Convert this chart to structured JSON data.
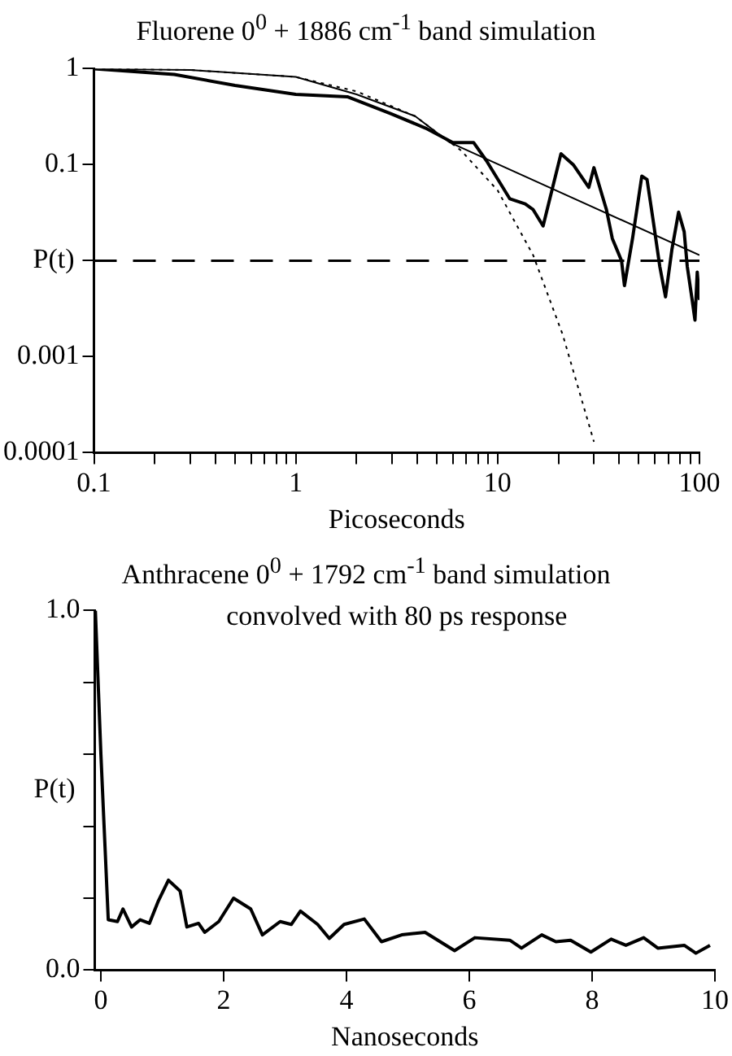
{
  "chart_data": [
    {
      "type": "line",
      "title": "Fluorene 0$^{0}$ + 1886 cm$^{-1}$ band simulation",
      "xlabel": "Picoseconds",
      "ylabel": "P(t)",
      "log": "xy",
      "grid": false,
      "legend": false,
      "marker": "none",
      "xlim": [
        0.1,
        100
      ],
      "ylim": [
        0.0001,
        1
      ],
      "xticks": [
        0.1,
        {
          "value": 0.2,
          "label": null
        },
        {
          "value": 0.3,
          "label": null
        },
        {
          "value": 0.4,
          "label": null
        },
        {
          "value": 0.5,
          "label": null
        },
        {
          "value": 0.6,
          "label": null
        },
        {
          "value": 0.7,
          "label": null
        },
        {
          "value": 0.8,
          "label": null
        },
        {
          "value": 0.9,
          "label": null
        },
        1,
        {
          "value": 2,
          "label": null
        },
        {
          "value": 3,
          "label": null
        },
        {
          "value": 4,
          "label": null
        },
        {
          "value": 5,
          "label": null
        },
        {
          "value": 6,
          "label": null
        },
        {
          "value": 7,
          "label": null
        },
        {
          "value": 8,
          "label": null
        },
        {
          "value": 9,
          "label": null
        },
        10,
        {
          "value": 20,
          "label": null
        },
        {
          "value": 30,
          "label": null
        },
        {
          "value": 40,
          "label": null
        },
        {
          "value": 50,
          "label": null
        },
        {
          "value": 60,
          "label": null
        },
        {
          "value": 70,
          "label": null
        },
        {
          "value": 80,
          "label": null
        },
        {
          "value": 90,
          "label": null
        },
        100
      ],
      "yticks": [
        0.0001,
        0.001,
        {
          "value": 0.01,
          "label": null
        },
        0.1,
        1
      ],
      "ref_lines": [
        {
          "axis": "y",
          "value": 0.01,
          "color": "#000000",
          "line_style": "dashed"
        }
      ],
      "series": [
        {
          "color": "#000000",
          "line_style": "solid",
          "x": [
            0.1,
            0.25,
            0.5,
            1,
            1.8,
            2.95,
            4.4,
            6.0,
            7.6,
            8.8,
            11.5,
            13.7,
            15,
            16.8,
            20.6,
            23.7,
            28.3,
            30,
            34.6,
            37,
            41.1,
            42.5,
            46.6,
            51.8,
            55,
            59,
            63.6,
            67.9,
            73,
            78.8,
            84,
            87,
            92,
            95,
            97.5,
            100
          ],
          "values": [
            1,
            0.87,
            0.67,
            0.54,
            0.51,
            0.34,
            0.24,
            0.17,
            0.17,
            0.11,
            0.044,
            0.039,
            0.034,
            0.023,
            0.13,
            0.1,
            0.058,
            0.093,
            0.034,
            0.017,
            0.01,
            0.0055,
            0.017,
            0.076,
            0.07,
            0.026,
            0.0087,
            0.0042,
            0.013,
            0.032,
            0.02,
            0.0087,
            0.0039,
            0.0024,
            0.0076,
            0.0039
          ]
        },
        {
          "color": "#000000",
          "line_style": "solid",
          "x": [
            0.1,
            0.3,
            1,
            2,
            3.9,
            5.8,
            100
          ],
          "values": [
            1,
            0.97,
            0.82,
            0.54,
            0.32,
            0.17,
            0.0114
          ]
        },
        {
          "color": "#000000",
          "line_style": "dotted",
          "x": [
            0.1,
            0.3,
            1,
            2,
            3.9,
            6.6,
            10,
            15,
            21,
            30
          ],
          "values": [
            1,
            0.97,
            0.82,
            0.58,
            0.32,
            0.14,
            0.054,
            0.0114,
            0.0017,
            0.00013
          ]
        }
      ]
    },
    {
      "type": "line",
      "title": "Anthracene 0$^{0}$ + 1792 cm$^{-1}$ band simulation",
      "subtitle": "convolved with 80 ps response",
      "xlabel": "Nanoseconds",
      "ylabel": "P(t)",
      "grid": false,
      "legend": false,
      "marker": "none",
      "xlim": [
        -0.1,
        10
      ],
      "ylim": [
        0,
        1
      ],
      "xticks": [
        0,
        2,
        4,
        6,
        8,
        10
      ],
      "yticks": [
        {
          "value": 0,
          "label": "0.0"
        },
        {
          "value": 0.2,
          "label": null
        },
        {
          "value": 0.4,
          "label": null
        },
        {
          "value": 0.6,
          "label": null
        },
        {
          "value": 0.8,
          "label": null
        },
        {
          "value": 1,
          "label": "1.0"
        }
      ],
      "series": [
        {
          "color": "#000000",
          "line_style": "solid",
          "x": [
            -0.09,
            0,
            0.12,
            0.27,
            0.36,
            0.5,
            0.64,
            0.79,
            0.93,
            1.1,
            1.29,
            1.4,
            1.59,
            1.69,
            1.92,
            2.16,
            2.44,
            2.63,
            2.92,
            3.1,
            3.25,
            3.53,
            3.72,
            3.96,
            4.29,
            4.57,
            4.9,
            5.28,
            5.76,
            6.09,
            6.66,
            6.85,
            7.18,
            7.41,
            7.65,
            7.98,
            8.31,
            8.55,
            8.84,
            9.07,
            9.5,
            9.69,
            9.92
          ],
          "values": [
            1.0,
            0.6,
            0.14,
            0.135,
            0.17,
            0.12,
            0.14,
            0.13,
            0.19,
            0.25,
            0.22,
            0.12,
            0.13,
            0.105,
            0.135,
            0.2,
            0.17,
            0.098,
            0.135,
            0.127,
            0.164,
            0.127,
            0.088,
            0.127,
            0.142,
            0.079,
            0.098,
            0.105,
            0.054,
            0.09,
            0.083,
            0.061,
            0.098,
            0.079,
            0.083,
            0.05,
            0.086,
            0.069,
            0.09,
            0.061,
            0.069,
            0.047,
            0.069
          ]
        }
      ]
    }
  ]
}
